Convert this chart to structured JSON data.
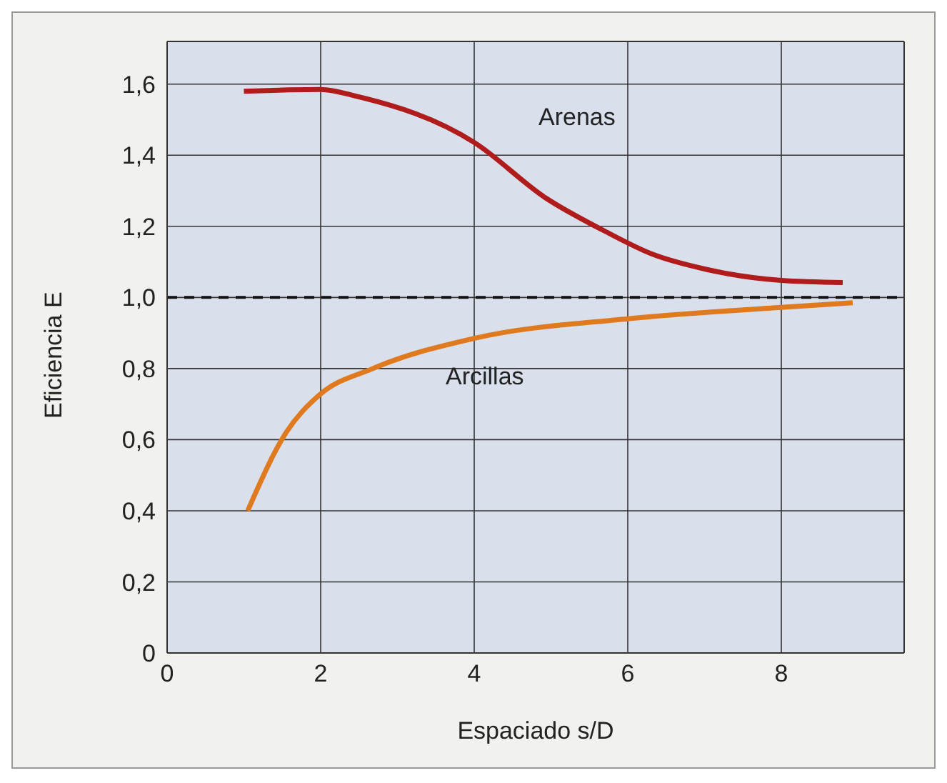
{
  "chart_data": {
    "type": "line",
    "xlabel": "Espaciado s/D",
    "ylabel": "Eficiencia E",
    "xlim": [
      0,
      9.6
    ],
    "xticks": [
      0,
      2,
      4,
      6,
      8
    ],
    "ylim": [
      0,
      1.72
    ],
    "yticks": [
      0,
      {
        "value": 0.2,
        "label": "0,2"
      },
      {
        "value": 0.4,
        "label": "0,4"
      },
      {
        "value": 0.6,
        "label": "0,6"
      },
      {
        "value": 0.8,
        "label": "0,8"
      },
      {
        "value": 1,
        "label": "1,0"
      },
      {
        "value": 1.2,
        "label": "1,2"
      },
      {
        "value": 1.4,
        "label": "1,4"
      },
      {
        "value": 1.6,
        "label": "1,6"
      }
    ],
    "grid": true,
    "marker": "none",
    "line_style": "solid",
    "ref_lines": [
      {
        "axis": "y",
        "value": 1,
        "color": "#111111",
        "line_style": "dashed"
      }
    ],
    "series": [
      {
        "name": "Arenas",
        "color": "#b01c1c",
        "x": [
          1,
          2,
          2.48,
          4,
          4.93,
          5.67,
          6.34,
          7,
          8,
          8.8
        ],
        "values": [
          1.58,
          1.585,
          1.565,
          1.436,
          1.28,
          1.19,
          1.12,
          1.08,
          1.048,
          1.042
        ]
      },
      {
        "name": "Arcillas",
        "color": "#e07a1e",
        "x": [
          1.05,
          1.55,
          1.98,
          2.68,
          4,
          6,
          8,
          8.93
        ],
        "values": [
          0.4,
          0.62,
          0.725,
          0.8,
          0.885,
          0.94,
          0.972,
          0.985
        ]
      }
    ]
  }
}
